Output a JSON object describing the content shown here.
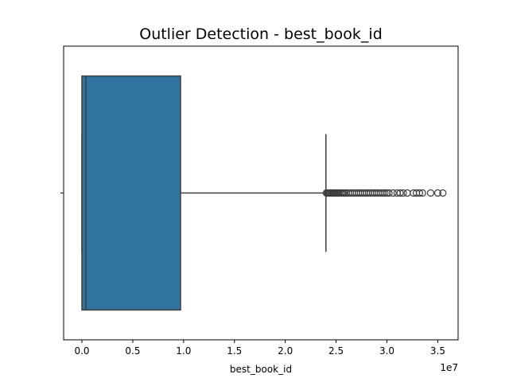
{
  "chart_data": {
    "type": "box",
    "title": "Outlier Detection - best_book_id",
    "xlabel": "best_book_id",
    "ylabel": "",
    "x_offset_label": "1e7",
    "xlim": [
      -1800000,
      37000000
    ],
    "x_ticks": [
      0,
      5000000,
      10000000,
      15000000,
      20000000,
      25000000,
      30000000,
      35000000
    ],
    "x_tick_labels": [
      "0.0",
      "0.5",
      "1.0",
      "1.5",
      "2.0",
      "2.5",
      "3.0",
      "3.5"
    ],
    "box": {
      "whisker_low": 0,
      "q1": 0,
      "median": 380000,
      "q3": 9700000,
      "whisker_high": 24000000
    },
    "outliers": [
      24050000,
      24150000,
      24250000,
      24350000,
      24450000,
      24550000,
      24650000,
      24750000,
      24850000,
      24950000,
      25050000,
      25150000,
      25250000,
      25400000,
      25550000,
      25700000,
      25850000,
      26000000,
      26200000,
      26400000,
      26600000,
      26800000,
      27000000,
      27200000,
      27400000,
      27600000,
      27800000,
      28000000,
      28200000,
      28400000,
      28600000,
      28800000,
      29000000,
      29200000,
      29400000,
      29600000,
      29800000,
      30000000,
      30200000,
      30600000,
      31000000,
      31300000,
      31600000,
      32000000,
      32600000,
      32900000,
      33200000,
      33500000,
      34300000,
      35000000,
      35500000
    ],
    "box_color": "#3274a1",
    "line_color": "#3d3d3d",
    "grid": false,
    "legend": "none"
  }
}
